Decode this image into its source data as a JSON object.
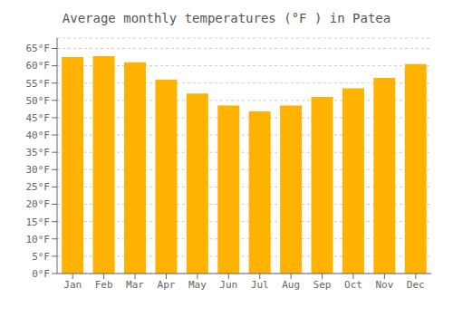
{
  "chart_data": {
    "type": "bar",
    "title": "Average monthly temperatures (°F ) in Patea",
    "categories": [
      "Jan",
      "Feb",
      "Mar",
      "Apr",
      "May",
      "Jun",
      "Jul",
      "Aug",
      "Sep",
      "Oct",
      "Nov",
      "Dec"
    ],
    "values": [
      62.5,
      62.8,
      61.0,
      56.0,
      52.0,
      48.5,
      46.8,
      48.5,
      51.0,
      53.5,
      56.5,
      60.5
    ],
    "color": "#FFB300",
    "ylim": [
      0,
      68
    ],
    "yticks": [
      {
        "value": 0,
        "label": "0°F"
      },
      {
        "value": 5,
        "label": "5°F"
      },
      {
        "value": 10,
        "label": "10°F"
      },
      {
        "value": 15,
        "label": "15°F"
      },
      {
        "value": 20,
        "label": "20°F"
      },
      {
        "value": 25,
        "label": "25°F"
      },
      {
        "value": 30,
        "label": "30°F"
      },
      {
        "value": 35,
        "label": "35°F"
      },
      {
        "value": 40,
        "label": "40°F"
      },
      {
        "value": 45,
        "label": "45°F"
      },
      {
        "value": 50,
        "label": "50°F"
      },
      {
        "value": 55,
        "label": "55°F"
      },
      {
        "value": 60,
        "label": "60°F"
      },
      {
        "value": 65,
        "label": "65°F"
      }
    ],
    "grid": true
  }
}
